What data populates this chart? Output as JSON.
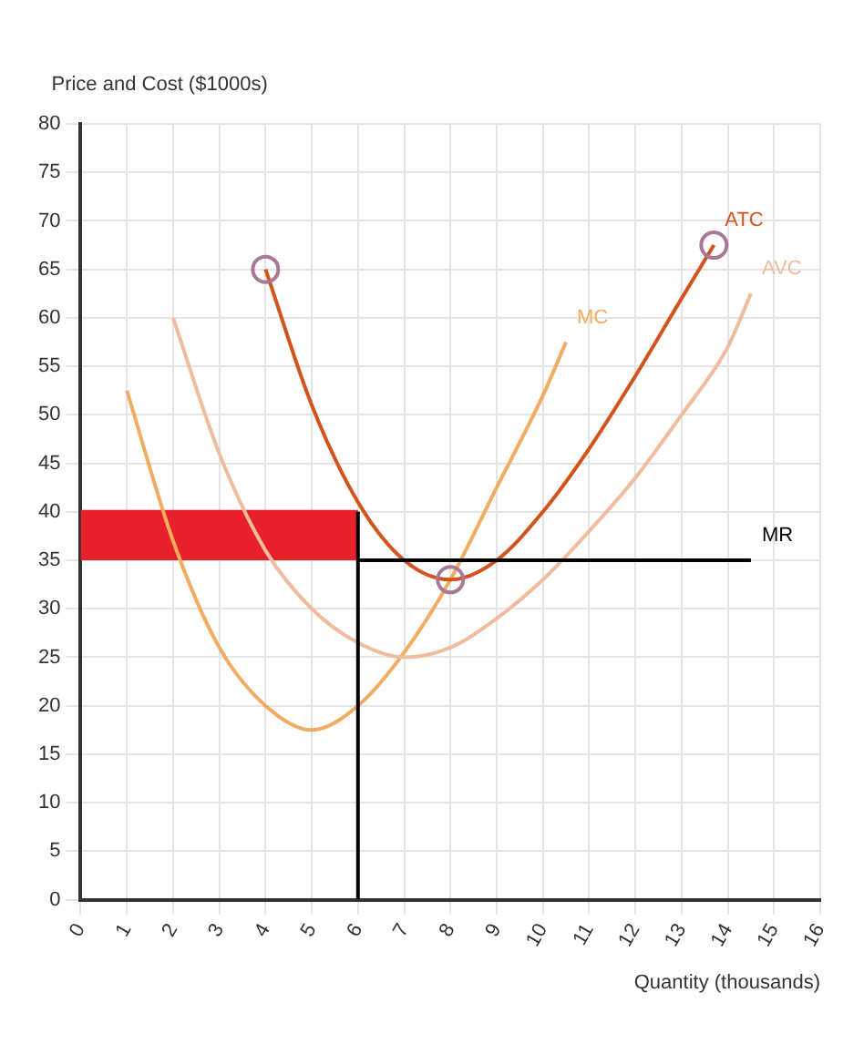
{
  "chart_data": {
    "type": "line",
    "ylabel": "Price and Cost ($1000s)",
    "xlabel": "Quantity (thousands)",
    "xlim": [
      0,
      16
    ],
    "xticks": [
      0,
      1,
      2,
      3,
      4,
      5,
      6,
      7,
      8,
      9,
      10,
      11,
      12,
      13,
      14,
      15,
      16
    ],
    "ylim": [
      0,
      80
    ],
    "yticks": [
      0,
      5,
      10,
      15,
      20,
      25,
      30,
      35,
      40,
      45,
      50,
      55,
      60,
      65,
      70,
      75,
      80
    ],
    "grid": true,
    "legend": false,
    "series": [
      {
        "type": "line",
        "color": "#e8202a",
        "x": [
          0,
          6
        ],
        "values": [
          40,
          40
        ],
        "lower": [
          35,
          35
        ],
        "upper": [
          40,
          40
        ]
      },
      {
        "name": "MC",
        "color": "#f2ac62",
        "x": [
          1,
          2,
          3,
          4,
          5,
          6,
          7,
          8,
          9,
          10,
          10.5
        ],
        "values": [
          52.5,
          37,
          26,
          20,
          17.5,
          20,
          25.5,
          33,
          42.5,
          52,
          57.5
        ]
      },
      {
        "name": "AVC",
        "color": "#efbc9e",
        "x": [
          2,
          3,
          4,
          5,
          6,
          7,
          8,
          9,
          10,
          11,
          12,
          13,
          14,
          14.5
        ],
        "values": [
          60,
          46,
          36,
          30,
          26.5,
          25,
          26,
          29,
          33,
          38,
          43.5,
          50,
          57,
          62.5
        ]
      },
      {
        "name": "ATC",
        "color": "#d4531c",
        "x": [
          4,
          5,
          6,
          7,
          8,
          9,
          10,
          11,
          12,
          13,
          13.7
        ],
        "values": [
          65,
          51,
          41,
          35,
          33,
          35,
          40,
          46.5,
          54,
          62,
          67.5
        ]
      },
      {
        "name": "MR",
        "color": "#000000",
        "x": [
          6,
          14.5
        ],
        "values": [
          35,
          35
        ]
      },
      {
        "color": "#000000",
        "x": [
          6,
          6
        ],
        "values": [
          0,
          40
        ]
      },
      {
        "type": "scatter",
        "color": "#a87898",
        "marker": "circle",
        "x": [
          4,
          8,
          13.7
        ],
        "values": [
          65,
          33,
          67.5
        ]
      }
    ]
  }
}
